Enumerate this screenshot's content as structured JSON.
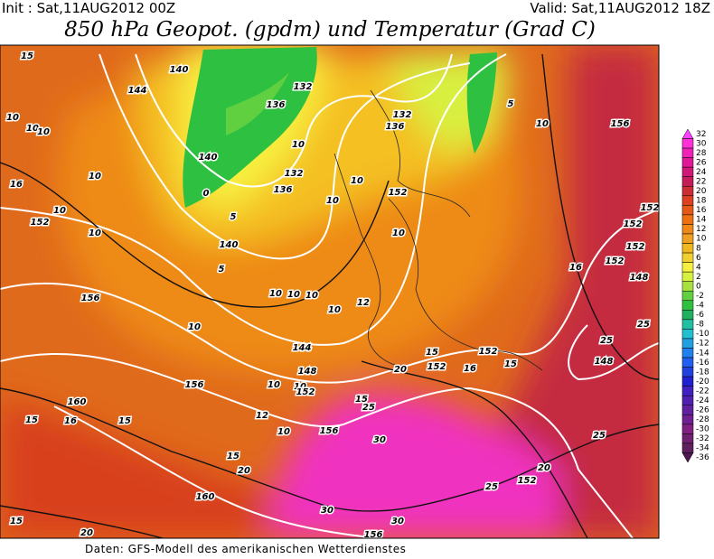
{
  "header": {
    "init": "Init : Sat,11AUG2012 00Z",
    "valid": "Valid: Sat,11AUG2012 18Z",
    "title": "850 hPa Geopot. (gpdm) und Temperatur (Grad C)"
  },
  "colorbar": {
    "labels": [
      32,
      30,
      28,
      26,
      24,
      22,
      20,
      18,
      16,
      14,
      12,
      10,
      8,
      6,
      4,
      2,
      0,
      -2,
      -4,
      -6,
      -8,
      -10,
      -12,
      -14,
      -16,
      -18,
      -20,
      -22,
      -24,
      -26,
      -28,
      -30,
      -32,
      -34,
      -36
    ],
    "colors": [
      "#ff40ff",
      "#ff30d8",
      "#f020b8",
      "#e01898",
      "#d01878",
      "#c41c58",
      "#cc2c34",
      "#dc4020",
      "#e65818",
      "#ee7010",
      "#f08818",
      "#f0a020",
      "#f0b820",
      "#f0d030",
      "#f8f040",
      "#d8f040",
      "#a8e040",
      "#60d040",
      "#30c040",
      "#20b060",
      "#20c0a0",
      "#20c0d0",
      "#20a0e0",
      "#2080f0",
      "#2060f0",
      "#2040e0",
      "#2020d0",
      "#4020c0",
      "#5020b0",
      "#6020a0",
      "#702090",
      "#802080",
      "#702070",
      "#602060",
      "#501850"
    ]
  },
  "map": {
    "labels": [
      "15",
      "140",
      "144",
      "132",
      "136",
      "132",
      "136",
      "10",
      "10",
      "10",
      "140",
      "132",
      "136",
      "156",
      "10",
      "10",
      "16",
      "10",
      "152",
      "10",
      "10",
      "10",
      "152",
      "10",
      "140",
      "152",
      "152",
      "152",
      "152",
      "16",
      "148",
      "156",
      "10",
      "10",
      "10",
      "12",
      "10",
      "10",
      "25",
      "144",
      "25",
      "15",
      "152",
      "152",
      "16",
      "15",
      "148",
      "148",
      "20",
      "156",
      "10",
      "10",
      "152",
      "15",
      "25",
      "160",
      "16",
      "15",
      "15",
      "12",
      "10",
      "156",
      "30",
      "25",
      "15",
      "20",
      "20",
      "25",
      "160",
      "152",
      "30",
      "30",
      "15",
      "20",
      "156",
      "0",
      "5",
      "5",
      "10",
      "5"
    ]
  },
  "footer": "Daten: GFS-Modell des amerikanischen Wetterdienstes"
}
